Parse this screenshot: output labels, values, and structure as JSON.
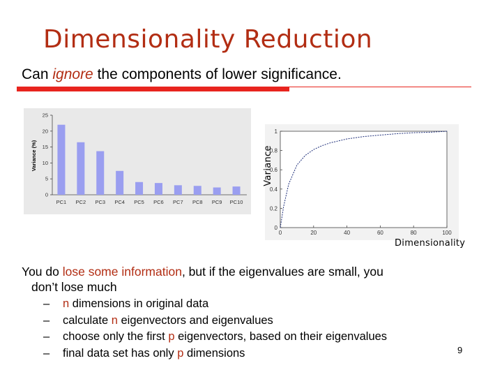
{
  "slide": {
    "title": "Dimensionality Reduction",
    "subtitle": {
      "pre": "Can ",
      "emphasis": "ignore",
      "post": " the components of lower significance."
    },
    "body": {
      "p1": "You do ",
      "p2": "lose some information",
      "p3": ", but if the eigenvalues are small, you",
      "p4": "don’t lose much"
    },
    "bullets": [
      {
        "dash": "–",
        "pre": "",
        "red": "n",
        "post": " dimensions in original data"
      },
      {
        "dash": "–",
        "pre": "calculate ",
        "red": "n",
        "post": " eigenvectors and eigenvalues"
      },
      {
        "dash": "–",
        "pre": "choose only the first ",
        "red": "p",
        "post": " eigenvectors, based on their eigenvalues"
      },
      {
        "dash": "–",
        "pre": "final data set has only ",
        "red": "p",
        "post": " dimensions"
      }
    ],
    "page_number": "9",
    "colors": {
      "title": "#b22d13",
      "rule": "#e8241e",
      "bars": "#9a9ef0",
      "curve": "#1f2f7a"
    }
  },
  "chart_data": [
    {
      "type": "bar",
      "categories": [
        "PC1",
        "PC2",
        "PC3",
        "PC4",
        "PC5",
        "PC6",
        "PC7",
        "PC8",
        "PC9",
        "PC10"
      ],
      "values": [
        22,
        16.5,
        13.7,
        7.5,
        4,
        3.7,
        3,
        2.8,
        2.3,
        2.6
      ],
      "ylabel": "Variance (%)",
      "ylim": [
        0,
        25
      ],
      "yticks": [
        "0",
        "5",
        "10",
        "15",
        "20",
        "25"
      ]
    },
    {
      "type": "line",
      "xlabel": "Dimensionality",
      "ylabel": "Variance",
      "xlim": [
        0,
        100
      ],
      "ylim": [
        0,
        1
      ],
      "xticks": [
        "0",
        "20",
        "40",
        "60",
        "80",
        "100"
      ],
      "yticks": [
        "0",
        "0.2",
        "0.4",
        "0.6",
        "0.8",
        "1"
      ],
      "x": [
        0,
        2,
        5,
        10,
        15,
        20,
        25,
        30,
        40,
        50,
        60,
        70,
        80,
        90,
        100
      ],
      "y": [
        0,
        0.22,
        0.45,
        0.65,
        0.75,
        0.81,
        0.85,
        0.88,
        0.92,
        0.945,
        0.96,
        0.975,
        0.985,
        0.99,
        1.0
      ]
    }
  ]
}
